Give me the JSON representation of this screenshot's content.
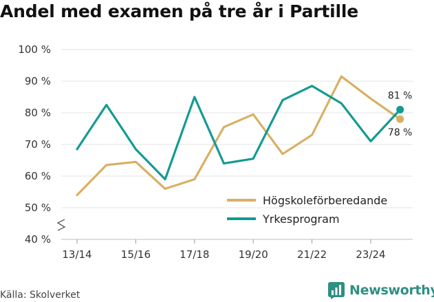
{
  "chart_data": {
    "type": "line",
    "title": "Andel med examen på tre år i Partille",
    "categories": [
      "13/14",
      "14/15",
      "15/16",
      "16/17",
      "17/18",
      "18/19",
      "19/20",
      "20/21",
      "21/22",
      "22/23",
      "23/24",
      "24/25"
    ],
    "x_tick_labels": [
      "13/14",
      "15/16",
      "17/18",
      "19/20",
      "21/22",
      "23/24"
    ],
    "y_tick_labels": [
      "40 %",
      "50 %",
      "60 %",
      "70 %",
      "80 %",
      "90 %",
      "100 %"
    ],
    "ylim": [
      40,
      100
    ],
    "y_axis_break": true,
    "grid": "horizontal",
    "legend_position": "bottom-right",
    "series": [
      {
        "name": "Högskoleförberedande",
        "color": "#d8b064",
        "values": [
          54,
          63.5,
          64.5,
          56,
          59,
          75.5,
          79.5,
          67,
          73,
          91.5,
          84.5,
          78
        ],
        "end_label": "78 %"
      },
      {
        "name": "Yrkesprogram",
        "color": "#129b92",
        "values": [
          68.5,
          82.5,
          68.5,
          59,
          85,
          64,
          65.5,
          84,
          88.5,
          83,
          71,
          81
        ],
        "end_label": "81 %"
      }
    ]
  },
  "source": "Källa: Skolverket",
  "brand": {
    "name": "Newsworthy",
    "color": "#2f8f82"
  }
}
